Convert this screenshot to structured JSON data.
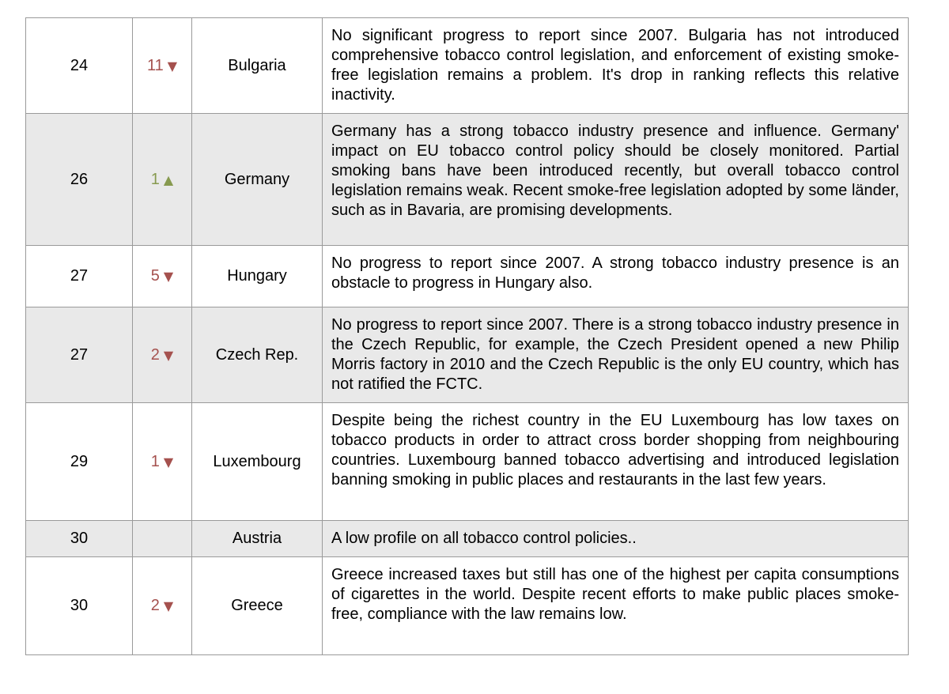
{
  "colors": {
    "rank_down_accent": "#a5514e",
    "rank_up_accent": "#879a4f",
    "shaded_row_background": "#e9e9e9",
    "grid_border": "#9a9a9a"
  },
  "icons": {
    "down_arrow": "▼",
    "up_arrow": "▲"
  },
  "table": {
    "rows": [
      {
        "rank": "24",
        "change": "11",
        "direction": "down",
        "country": "Bulgaria",
        "description": "No significant progress to report since 2007. Bulgaria has not introduced comprehensive tobacco control legislation, and enforcement of existing smoke-free legislation remains a problem. It's drop in ranking reflects this relative inactivity."
      },
      {
        "rank": "26",
        "change": "1",
        "direction": "up",
        "country": "Germany",
        "description": "Germany has a strong tobacco industry presence and influence. Germany' impact on EU tobacco control policy should be closely monitored. Partial smoking bans have been introduced recently, but overall tobacco control legislation remains weak. Recent smoke-free legislation adopted by some länder, such as in Bavaria, are promising developments."
      },
      {
        "rank": "27",
        "change": "5",
        "direction": "down",
        "country": "Hungary",
        "description": "No progress to report since 2007. A strong tobacco industry presence is an obstacle to progress in Hungary also."
      },
      {
        "rank": "27",
        "change": "2",
        "direction": "down",
        "country": "Czech Rep.",
        "description": "No progress to report since 2007. There is a strong tobacco industry presence in the Czech Republic, for example, the Czech President opened a new Philip Morris factory in 2010 and the Czech Republic is the only EU country, which has not ratified the FCTC."
      },
      {
        "rank": "29",
        "change": "1",
        "direction": "down",
        "country": "Luxembourg",
        "description": "Despite being the richest country in the EU Luxembourg has low taxes on tobacco products in order to attract cross border shopping from neighbouring countries. Luxembourg banned tobacco advertising and introduced legislation banning smoking in public places and restaurants in the last few years."
      },
      {
        "rank": "30",
        "change": "",
        "direction": "none",
        "country": "Austria",
        "description": "A low profile on all tobacco control policies.."
      },
      {
        "rank": "30",
        "change": "2",
        "direction": "down",
        "country": "Greece",
        "description": "Greece increased taxes but still has one of the highest per capita consumptions of cigarettes in the world. Despite recent efforts to make public places smoke-free, compliance with the law remains low."
      }
    ]
  }
}
